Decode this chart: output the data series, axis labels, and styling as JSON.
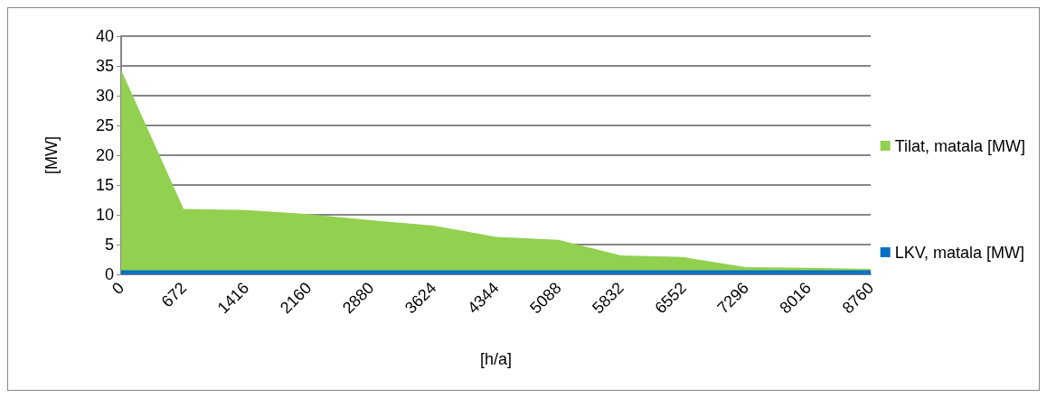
{
  "chart_data": {
    "type": "area",
    "xlabel": "[h/a]",
    "ylabel": "[MW]",
    "categories": [
      "0",
      "672",
      "1416",
      "2160",
      "2880",
      "3624",
      "4344",
      "5088",
      "5832",
      "6552",
      "7296",
      "8016",
      "8760"
    ],
    "series": [
      {
        "name": "Tilat, matala [MW]",
        "color": "#92d050",
        "values": [
          34.3,
          11.0,
          10.8,
          10.1,
          9.1,
          8.2,
          6.3,
          5.8,
          3.2,
          2.9,
          1.2,
          1.1,
          0.9
        ]
      },
      {
        "name": "LKV, matala [MW]",
        "color": "#0070c0",
        "values": [
          0.7,
          0.7,
          0.7,
          0.7,
          0.7,
          0.7,
          0.7,
          0.7,
          0.7,
          0.7,
          0.7,
          0.7,
          0.7
        ]
      }
    ],
    "ylim": [
      0,
      40
    ],
    "yticks": [
      0,
      5,
      10,
      15,
      20,
      25,
      30,
      35,
      40
    ],
    "grid": "y",
    "legend": "right",
    "marker": "none"
  }
}
